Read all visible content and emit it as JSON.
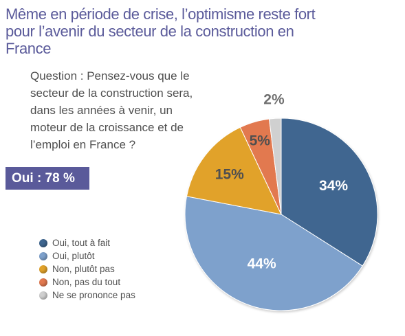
{
  "title": "Même en période de crise, l’optimisme reste fort pour l’avenir du secteur de la construction en France",
  "question": "Question : Pensez-vous que le secteur de la construction sera, dans les années à venir, un moteur de la croissance et de l’emploi en France ?",
  "summary_badge": "Oui : 78 %",
  "chart_data": {
    "type": "pie",
    "title": "",
    "unit": "%",
    "categories": [
      "Oui, tout à fait",
      "Oui, plutôt",
      "Non, plutôt pas",
      "Non, pas du tout",
      "Ne se prononce pas"
    ],
    "values": [
      34,
      44,
      15,
      5,
      2
    ],
    "labels": [
      "34%",
      "44%",
      "15%",
      "5%",
      "2%"
    ],
    "colors": [
      "#3f6690",
      "#7ea1cc",
      "#e1a22a",
      "#e2794f",
      "#d0d0d0"
    ],
    "start": "12 o'clock, clockwise",
    "legend": "bottom-left"
  }
}
